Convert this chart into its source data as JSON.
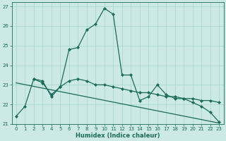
{
  "xlabel": "Humidex (Indice chaleur)",
  "background_color": "#cce9e5",
  "line_color": "#1a6b5a",
  "grid_color": "#a8d4cf",
  "xlim": [
    -0.5,
    23.5
  ],
  "ylim": [
    21,
    27.2
  ],
  "yticks": [
    21,
    22,
    23,
    24,
    25,
    26,
    27
  ],
  "xticks": [
    0,
    1,
    2,
    3,
    4,
    5,
    6,
    7,
    8,
    9,
    10,
    11,
    12,
    13,
    14,
    15,
    16,
    17,
    18,
    19,
    20,
    21,
    22,
    23
  ],
  "series1_x": [
    0,
    1,
    2,
    3,
    4,
    5,
    6,
    7,
    8,
    9,
    10,
    11,
    12,
    13,
    14,
    15,
    16,
    17,
    18,
    19,
    20,
    21,
    22,
    23
  ],
  "series1_y": [
    21.4,
    21.9,
    23.3,
    23.1,
    22.5,
    22.9,
    24.8,
    24.9,
    25.8,
    26.1,
    26.9,
    26.6,
    23.5,
    23.5,
    22.2,
    22.4,
    23.0,
    22.5,
    22.3,
    22.3,
    22.1,
    21.9,
    21.6,
    21.1
  ],
  "series2_x": [
    2,
    3,
    4,
    5,
    6,
    7,
    8,
    9,
    10,
    11,
    12,
    13,
    14,
    15,
    16,
    17,
    18,
    19,
    20,
    21,
    22,
    23
  ],
  "series2_y": [
    23.3,
    23.2,
    22.4,
    22.9,
    23.2,
    23.3,
    23.2,
    23.0,
    23.0,
    22.9,
    22.8,
    22.7,
    22.6,
    22.6,
    22.5,
    22.4,
    22.4,
    22.3,
    22.3,
    22.2,
    22.2,
    22.1
  ],
  "series3_x": [
    0,
    23
  ],
  "series3_y": [
    23.1,
    21.05
  ]
}
